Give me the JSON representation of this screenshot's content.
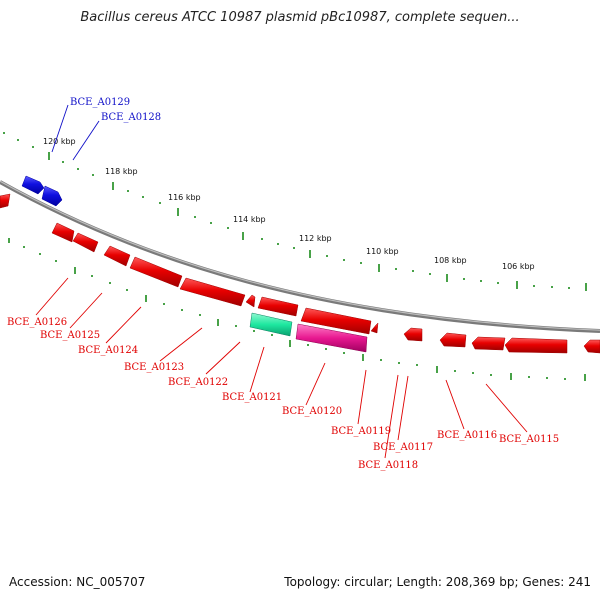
{
  "title": "Bacillus cereus ATCC 10987 plasmid pBc10987, complete sequen...",
  "accession": "Accession: NC_005707",
  "summary": "Topology: circular; Length: 208,369 bp; Genes: 241",
  "colors": {
    "forward_gene": "#1010e0",
    "reverse_gene": "#e80000",
    "highlight_green": "#1ee8a0",
    "highlight_magenta": "#e81890",
    "backbone": "#8a8a8a",
    "ticks": "#1a8a1a"
  },
  "ruler_labels": [
    "120 kbp",
    "118 kbp",
    "116 kbp",
    "114 kbp",
    "112 kbp",
    "110 kbp",
    "108 kbp",
    "106 kbp"
  ],
  "gene_labels_top": [
    "BCE_A0129",
    "BCE_A0128"
  ],
  "gene_labels_bottom": [
    "BCE_A0126",
    "BCE_A0125",
    "BCE_A0124",
    "BCE_A0123",
    "BCE_A0122",
    "BCE_A0121",
    "BCE_A0120",
    "BCE_A0119",
    "BCE_A0118",
    "BCE_A0117",
    "BCE_A0116",
    "BCE_A0115"
  ]
}
